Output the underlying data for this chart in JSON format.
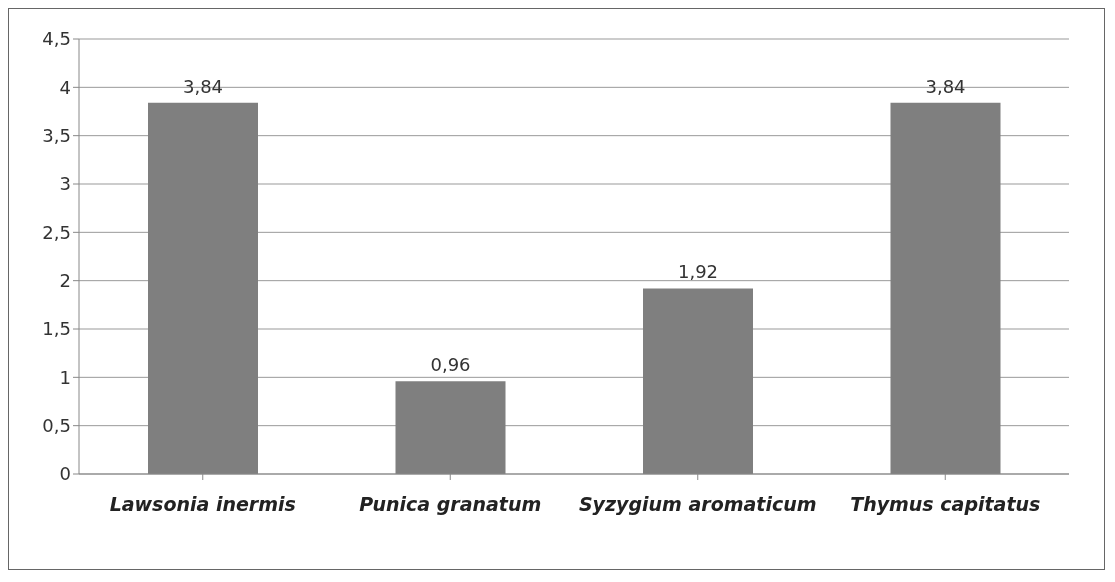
{
  "chart_data": {
    "type": "bar",
    "categories": [
      "Lawsonia inermis",
      "Punica granatum",
      "Syzygium aromaticum",
      "Thymus capitatus"
    ],
    "values": [
      3.84,
      0.96,
      1.92,
      3.84
    ],
    "value_labels": [
      "3,84",
      "0,96",
      "1,92",
      "3,84"
    ],
    "color": "#7f7f7f",
    "ylim": [
      0,
      4.5
    ],
    "yticks": [
      0,
      {
        "value": 0.5,
        "label": "0,5"
      },
      1,
      {
        "value": 1.5,
        "label": "1,5"
      },
      2,
      {
        "value": 2.5,
        "label": "2,5"
      },
      3,
      {
        "value": 3.5,
        "label": "3,5"
      },
      4,
      {
        "value": 4.5,
        "label": "4,5"
      }
    ],
    "grid": "y"
  }
}
